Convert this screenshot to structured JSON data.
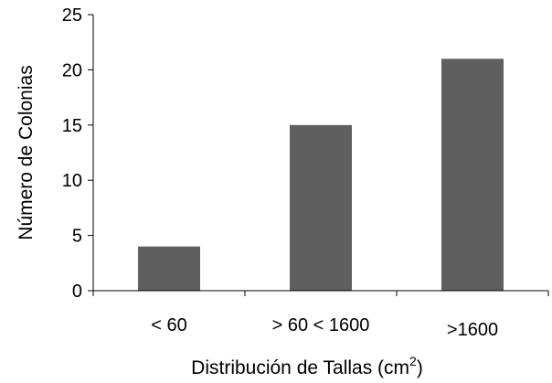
{
  "chart_data": {
    "type": "bar",
    "categories": [
      "< 60",
      "> 60 < 1600",
      ">1600"
    ],
    "values": [
      4,
      15,
      21
    ],
    "xlabel": "Distribución de Tallas (cm",
    "xlabel_superscript": "2",
    "xlabel_suffix": ")",
    "ylabel": "Número de Colonias",
    "ylim": [
      0,
      25
    ],
    "yticks": [
      0,
      5,
      10,
      15,
      20,
      25
    ],
    "bar_color": "#5f5f5f",
    "grid": false,
    "legend": "none"
  }
}
